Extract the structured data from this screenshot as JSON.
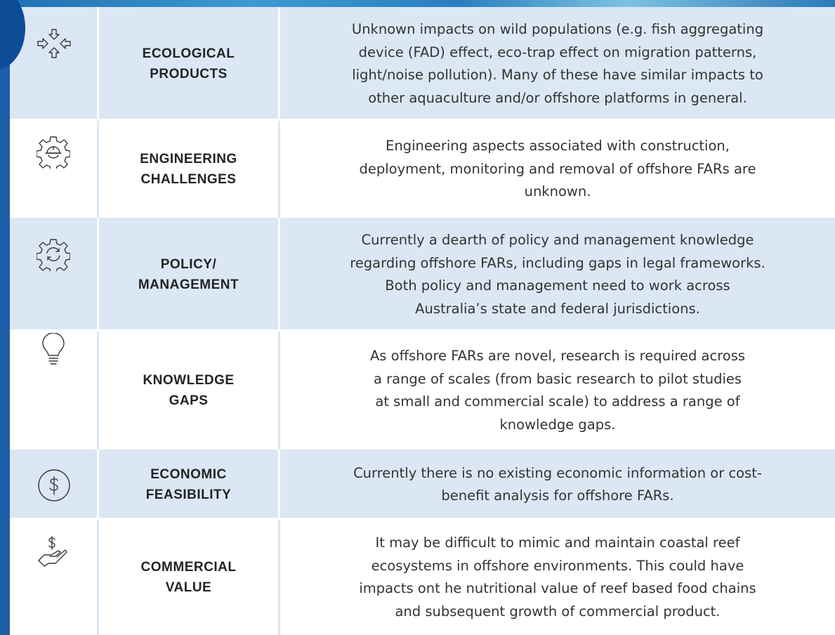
{
  "rows": [
    {
      "label": [
        "ECOLOGICAL",
        "PRODUCTS"
      ],
      "description": [
        "Unknown impacts on wild populations (e.g. fish aggregating",
        "device (FAD) effect, eco-trap effect on migration patterns,",
        "light/noise pollution). Many of these have similar impacts to",
        "other aquaculture and/or offshore platforms in general."
      ]
    },
    {
      "label": [
        "ENGINEERING",
        "CHALLENGES"
      ],
      "description": [
        "Engineering aspects associated with construction,",
        "deployment, monitoring and removal of offshore FARs are",
        "unknown."
      ]
    },
    {
      "label": [
        "POLICY/",
        "MANAGEMENT"
      ],
      "description": [
        "Currently a dearth of policy and management knowledge",
        "regarding offshore FARs, including gaps in legal frameworks.",
        "Both policy and management need to work across",
        "Australia’s state and federal jurisdictions."
      ]
    },
    {
      "label": [
        "KNOWLEDGE",
        "GAPS"
      ],
      "description": [
        "As offshore FARs are novel, research is required across",
        "a range of scales (from basic research to pilot studies",
        "at small and commercial scale) to address a range of",
        "knowledge gaps."
      ]
    },
    {
      "label": [
        "ECONOMIC",
        "FEASIBILITY"
      ],
      "description": [
        "Currently there is no existing economic information or cost-",
        "benefit analysis for offshore FARs."
      ]
    },
    {
      "label": [
        "COMMERCIAL",
        "VALUE"
      ],
      "description": [
        "It may be difficult to mimic and maintain coastal reef",
        "ecosystems in offshore environments. This could have",
        "impacts ont he nutritional value of reef based food chains",
        "and subsequent growth of commercial product."
      ]
    }
  ]
}
